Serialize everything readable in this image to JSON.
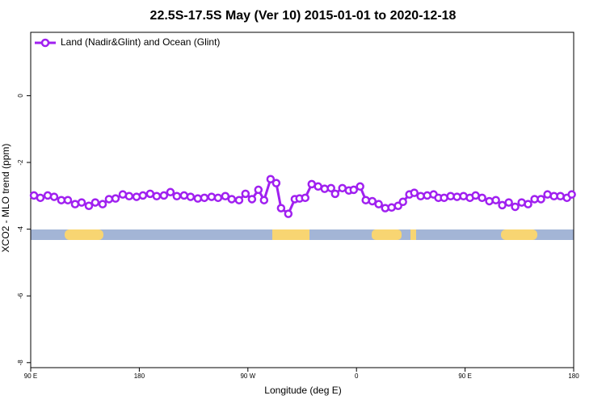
{
  "chart_data": {
    "type": "line",
    "title": "22.5S-17.5S May (Ver 10)   2015-01-01 to 2020-12-18",
    "x_label": "Longitude (deg E)",
    "y_label": "XCO2 - MLO trend (ppm)",
    "xlim": [
      90,
      540
    ],
    "xticks": [
      {
        "value": 90,
        "label": "90 E"
      },
      180,
      {
        "value": 270,
        "label": "90 W"
      },
      {
        "value": 360,
        "label": "0"
      },
      {
        "value": 450,
        "label": "90 E"
      },
      {
        "value": 540,
        "label": "180"
      }
    ],
    "ylim": [
      -8.15,
      1.9
    ],
    "yticks": [
      0,
      -2,
      -4,
      -6,
      -8
    ],
    "grid": false,
    "legend": "top-left",
    "x": [
      92.7,
      98.0,
      104.1,
      109.4,
      115.4,
      120.8,
      126.8,
      132.2,
      138.2,
      143.5,
      149.6,
      154.9,
      160.3,
      166.3,
      171.6,
      177.7,
      183.0,
      189.0,
      194.4,
      200.4,
      205.8,
      211.1,
      217.1,
      222.5,
      228.5,
      233.9,
      239.9,
      245.3,
      251.3,
      256.6,
      262.7,
      268.0,
      273.4,
      278.7,
      283.4,
      288.8,
      293.5,
      297.5,
      303.5,
      308.9,
      312.8,
      317.5,
      322.9,
      328.2,
      333.6,
      338.9,
      342.3,
      348.3,
      353.7,
      357.7,
      363.0,
      367.7,
      373.1,
      378.4,
      383.8,
      389.1,
      394.5,
      398.5,
      403.8,
      407.9,
      413.2,
      418.6,
      423.9,
      427.9,
      432.6,
      438.0,
      443.3,
      448.7,
      454.0,
      458.7,
      464.1,
      470.1,
      475.5,
      480.8,
      486.2,
      491.5,
      496.9,
      502.2,
      507.6,
      512.9,
      518.3,
      523.7,
      529.0,
      534.4,
      538.4
    ],
    "series": [
      {
        "name": "Land (Nadir&Glint) and Ocean (Glint)",
        "color": "#a020f0",
        "values": [
          -2.99,
          -3.06,
          -2.99,
          -3.03,
          -3.13,
          -3.13,
          -3.25,
          -3.2,
          -3.3,
          -3.2,
          -3.25,
          -3.1,
          -3.08,
          -2.96,
          -3.01,
          -3.03,
          -2.99,
          -2.94,
          -3.01,
          -2.99,
          -2.89,
          -3.01,
          -2.99,
          -3.03,
          -3.08,
          -3.06,
          -3.03,
          -3.06,
          -3.01,
          -3.1,
          -3.13,
          -2.94,
          -3.1,
          -2.82,
          -3.13,
          -2.5,
          -2.62,
          -3.37,
          -3.54,
          -3.1,
          -3.08,
          -3.06,
          -2.65,
          -2.72,
          -2.79,
          -2.77,
          -2.94,
          -2.77,
          -2.84,
          -2.82,
          -2.72,
          -3.13,
          -3.16,
          -3.25,
          -3.37,
          -3.35,
          -3.3,
          -3.18,
          -2.96,
          -2.91,
          -3.01,
          -2.99,
          -2.96,
          -3.06,
          -3.06,
          -3.01,
          -3.03,
          -3.01,
          -3.06,
          -2.99,
          -3.06,
          -3.16,
          -3.13,
          -3.28,
          -3.2,
          -3.33,
          -3.2,
          -3.25,
          -3.1,
          -3.1,
          -2.96,
          -3.01,
          -3.01,
          -3.06,
          -2.96
        ]
      }
    ]
  }
}
